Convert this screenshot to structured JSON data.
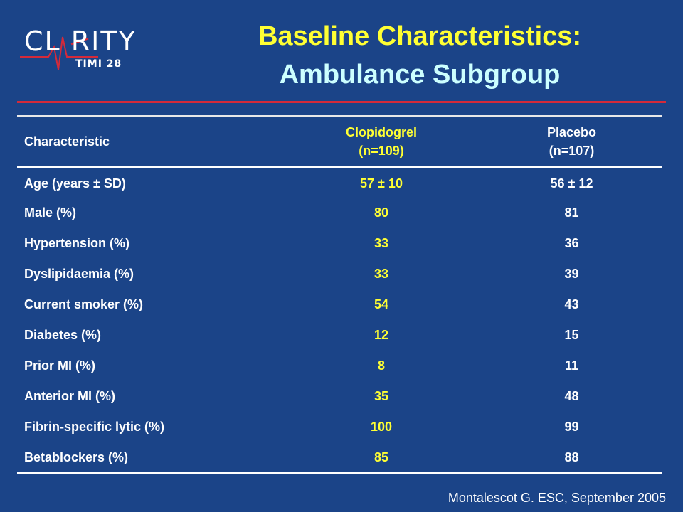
{
  "logo": {
    "text": "CL RITY",
    "sub": "TIMI 28"
  },
  "title": {
    "line1": "Baseline Characteristics:",
    "line2": "Ambulance Subgroup"
  },
  "table": {
    "headers": [
      {
        "line1": "Characteristic",
        "line2": ""
      },
      {
        "line1": "Clopidogrel",
        "line2": "(n=109)"
      },
      {
        "line1": "Placebo",
        "line2": "(n=107)"
      }
    ],
    "rows": [
      [
        "Age (years ± SD)",
        "57 ± 10",
        "56 ± 12"
      ],
      [
        "Male (%)",
        "80",
        "81"
      ],
      [
        "Hypertension (%)",
        "33",
        "36"
      ],
      [
        "Dyslipidaemia (%)",
        "33",
        "39"
      ],
      [
        "Current smoker (%)",
        "54",
        "43"
      ],
      [
        "Diabetes (%)",
        "12",
        "15"
      ],
      [
        "Prior MI (%)",
        "8",
        "11"
      ],
      [
        "Anterior MI (%)",
        "35",
        "48"
      ],
      [
        "Fibrin-specific lytic (%)",
        "100",
        "99"
      ],
      [
        "Betablockers (%)",
        "85",
        "88"
      ]
    ]
  },
  "citation": "Montalescot G. ESC, September 2005",
  "colors": {
    "background": "#1b4488",
    "title1": "#ffff33",
    "title2": "#ccffff",
    "accent_line": "#d42a3a",
    "clopidogrel": "#ffff33"
  }
}
